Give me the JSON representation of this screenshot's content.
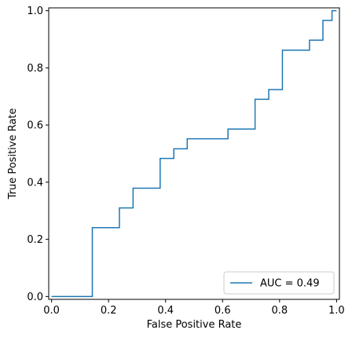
{
  "chart_data": {
    "type": "line",
    "title": "",
    "xlabel": "False Positive Rate",
    "ylabel": "True Positive Rate",
    "xlim": [
      -0.01,
      1.01
    ],
    "ylim": [
      -0.01,
      1.01
    ],
    "xticks": [
      0.0,
      0.2,
      0.4,
      0.6,
      0.8,
      1.0
    ],
    "yticks": [
      0.0,
      0.2,
      0.4,
      0.6,
      0.8,
      1.0
    ],
    "xtick_labels": [
      "0.0",
      "0.2",
      "0.4",
      "0.6",
      "0.8",
      "1.0"
    ],
    "ytick_labels": [
      "0.0",
      "0.2",
      "0.4",
      "0.6",
      "0.8",
      "1.0"
    ],
    "grid": false,
    "legend_position": "lower-right",
    "series": [
      {
        "name": "AUC = 0.49",
        "color": "#1f77b4",
        "drawstyle": "steps",
        "x": [
          0.0,
          0.143,
          0.143,
          0.238,
          0.238,
          0.286,
          0.286,
          0.381,
          0.381,
          0.429,
          0.429,
          0.476,
          0.476,
          0.619,
          0.619,
          0.714,
          0.714,
          0.762,
          0.762,
          0.81,
          0.81,
          0.905,
          0.905,
          0.952,
          0.952,
          0.984,
          0.984,
          1.0
        ],
        "y": [
          0.0,
          0.0,
          0.241,
          0.241,
          0.31,
          0.31,
          0.379,
          0.379,
          0.483,
          0.483,
          0.517,
          0.517,
          0.552,
          0.552,
          0.586,
          0.586,
          0.69,
          0.69,
          0.724,
          0.724,
          0.862,
          0.862,
          0.897,
          0.897,
          0.966,
          0.966,
          1.0,
          1.0
        ]
      }
    ]
  }
}
